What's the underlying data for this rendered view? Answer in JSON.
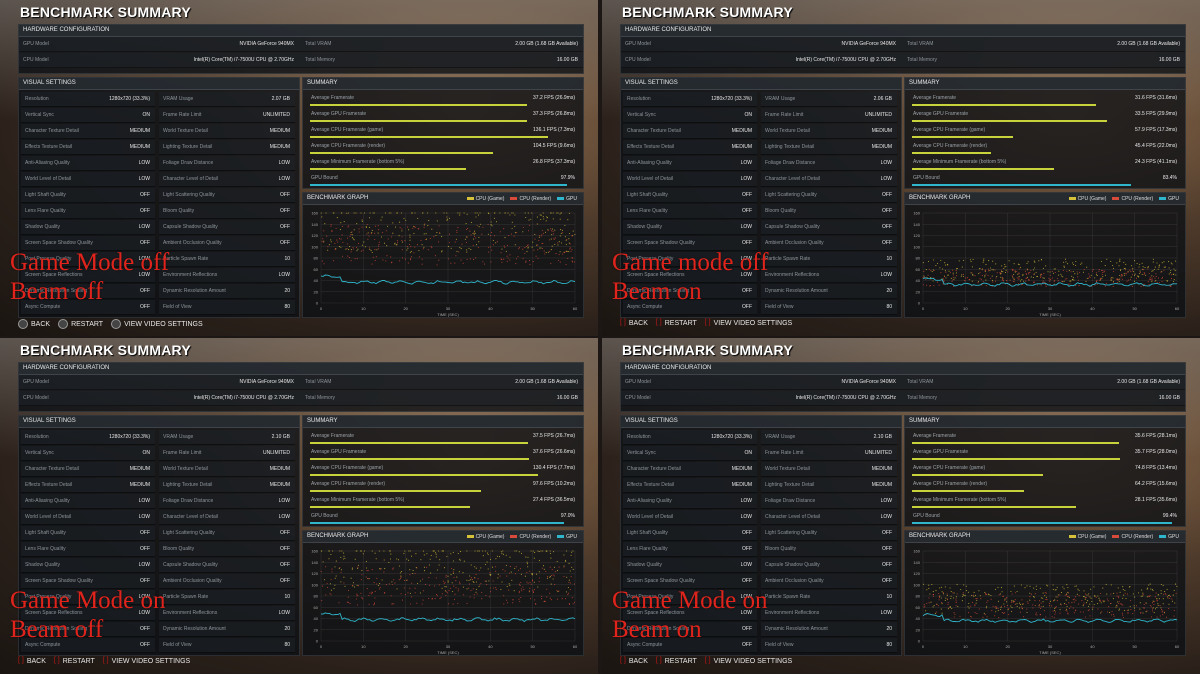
{
  "labels": {
    "title": "BENCHMARK SUMMARY",
    "hardware": "HARDWARE CONFIGURATION",
    "gpu_model": "GPU Model",
    "cpu_model": "CPU Model",
    "total_vram": "Total VRAM",
    "total_memory": "Total Memory",
    "visual": "VISUAL SETTINGS",
    "summary": "SUMMARY",
    "graph": "BENCHMARK GRAPH",
    "time_axis": "TIME (SEC)",
    "legend_game": "CPU (Game)",
    "legend_render": "CPU (Render)",
    "legend_gpu": "GPU",
    "back": "BACK",
    "restart": "RESTART",
    "video": "VIEW VIDEO SETTINGS"
  },
  "hardware": {
    "gpu": "NVIDIA GeForce 940MX",
    "cpu": "Intel(R) Core(TM) i7-7500U CPU @ 2.70GHz",
    "vram": "2.00 GB (1.68 GB Available)",
    "memory": "16.00 GB"
  },
  "settings_left": [
    [
      "Resolution",
      "1280x720 (33.3%)"
    ],
    [
      "Vertical Sync",
      "ON"
    ],
    [
      "Character Texture Detail",
      "MEDIUM"
    ],
    [
      "Effects Texture Detail",
      "MEDIUM"
    ],
    [
      "Anti-Aliasing Quality",
      "LOW"
    ],
    [
      "World Level of Detail",
      "LOW"
    ],
    [
      "Light Shaft Quality",
      "OFF"
    ],
    [
      "Lens Flare Quality",
      "OFF"
    ],
    [
      "Shadow Quality",
      "LOW"
    ],
    [
      "Screen Space Shadow Quality",
      "OFF"
    ],
    [
      "Post Process Quality",
      "LOW"
    ],
    [
      "Screen Space Reflections",
      "LOW"
    ],
    [
      "Dynamic Resolution Scaling",
      "OFF"
    ],
    [
      "Async Compute",
      "OFF"
    ]
  ],
  "settings_right": [
    [
      "VRAM Usage",
      ""
    ],
    [
      "Frame Rate Limit",
      "UNLIMITED"
    ],
    [
      "World Texture Detail",
      "MEDIUM"
    ],
    [
      "Lighting Texture Detail",
      "MEDIUM"
    ],
    [
      "Foliage Draw Distance",
      "LOW"
    ],
    [
      "Character Level of Detail",
      "LOW"
    ],
    [
      "Light Scattering Quality",
      "OFF"
    ],
    [
      "Bloom Quality",
      "OFF"
    ],
    [
      "Capsule Shadow Quality",
      "OFF"
    ],
    [
      "Ambient Occlusion Quality",
      "OFF"
    ],
    [
      "Particle Spawn Rate",
      "10"
    ],
    [
      "Environment Reflections",
      "LOW"
    ],
    [
      "Dynamic Resolution Amount",
      "20"
    ],
    [
      "Field of View",
      "80"
    ]
  ],
  "summary_labels": [
    "Average Framerate",
    "Average GPU Framerate",
    "Average CPU Framerate (game)",
    "Average CPU Framerate (render)",
    "Average Minimum Framerate (bottom 5%)",
    "GPU Bound"
  ],
  "panels": [
    {
      "overlay1": "Game Mode off",
      "overlay2": "Beam off",
      "vram_usage": "2.07 GB",
      "summary": [
        "37.2 FPS (26.9ms)",
        "37.3 FPS (26.8ms)",
        "136.1 FPS (7.3ms)",
        "104.5 FPS (9.6ms)",
        "26.8 FPS (37.3ms)",
        "97.9%"
      ],
      "footer_style": "round"
    },
    {
      "overlay1": "Game mode off",
      "overlay2": "Beam on",
      "vram_usage": "2.06 GB",
      "summary": [
        "31.6 FPS (31.6ms)",
        "33.5 FPS (29.9ms)",
        "57.9 FPS (17.3ms)",
        "45.4 FPS (22.0ms)",
        "24.3 FPS (41.1ms)",
        "83.4%"
      ],
      "footer_style": "red"
    },
    {
      "overlay1": "Game Mode on",
      "overlay2": "Beam off",
      "vram_usage": "2.10 GB",
      "summary": [
        "37.5 FPS (26.7ms)",
        "37.6 FPS (26.6ms)",
        "130.4 FPS (7.7ms)",
        "97.6 FPS (10.2ms)",
        "27.4 FPS (36.5ms)",
        "97.0%"
      ],
      "footer_style": "red"
    },
    {
      "overlay1": "Game Mode on",
      "overlay2": "Beam on",
      "vram_usage": "2.10 GB",
      "summary": [
        "35.6 FPS (28.1ms)",
        "35.7 FPS (28.0ms)",
        "74.8 FPS (13.4ms)",
        "64.2 FPS (15.6ms)",
        "28.1 FPS (35.6ms)",
        "99.4%"
      ],
      "footer_style": "red"
    }
  ],
  "chart_data": [
    {
      "type": "scatter",
      "title": "BENCHMARK GRAPH",
      "xlabel": "TIME (SEC)",
      "xlim": [
        0,
        60
      ],
      "ylim": [
        0,
        160
      ],
      "x_ticks": [
        0,
        10,
        20,
        30,
        40,
        50,
        60
      ],
      "y_ticks": [
        0,
        20,
        40,
        60,
        80,
        100,
        120,
        140,
        160
      ],
      "series": [
        {
          "name": "CPU (Game)",
          "color": "#d6c23a",
          "approx_mean": 136
        },
        {
          "name": "CPU (Render)",
          "color": "#d84a3a",
          "approx_mean": 104
        },
        {
          "name": "GPU",
          "color": "#2fb6cc",
          "approx_mean": 37
        }
      ]
    },
    {
      "type": "scatter",
      "title": "BENCHMARK GRAPH",
      "xlabel": "TIME (SEC)",
      "xlim": [
        0,
        60
      ],
      "ylim": [
        0,
        160
      ],
      "x_ticks": [
        0,
        10,
        20,
        30,
        40,
        50,
        60
      ],
      "y_ticks": [
        0,
        20,
        40,
        60,
        80,
        100,
        120,
        140,
        160
      ],
      "series": [
        {
          "name": "CPU (Game)",
          "color": "#d6c23a",
          "approx_mean": 58
        },
        {
          "name": "CPU (Render)",
          "color": "#d84a3a",
          "approx_mean": 45
        },
        {
          "name": "GPU",
          "color": "#2fb6cc",
          "approx_mean": 33
        }
      ]
    },
    {
      "type": "scatter",
      "title": "BENCHMARK GRAPH",
      "xlabel": "TIME (SEC)",
      "xlim": [
        0,
        60
      ],
      "ylim": [
        0,
        160
      ],
      "x_ticks": [
        0,
        10,
        20,
        30,
        40,
        50,
        60
      ],
      "y_ticks": [
        0,
        20,
        40,
        60,
        80,
        100,
        120,
        140,
        160
      ],
      "series": [
        {
          "name": "CPU (Game)",
          "color": "#d6c23a",
          "approx_mean": 130
        },
        {
          "name": "CPU (Render)",
          "color": "#d84a3a",
          "approx_mean": 98
        },
        {
          "name": "GPU",
          "color": "#2fb6cc",
          "approx_mean": 38
        }
      ]
    },
    {
      "type": "scatter",
      "title": "BENCHMARK GRAPH",
      "xlabel": "TIME (SEC)",
      "xlim": [
        0,
        60
      ],
      "ylim": [
        0,
        160
      ],
      "x_ticks": [
        0,
        10,
        20,
        30,
        40,
        50,
        60
      ],
      "y_ticks": [
        0,
        20,
        40,
        60,
        80,
        100,
        120,
        140,
        160
      ],
      "series": [
        {
          "name": "CPU (Game)",
          "color": "#d6c23a",
          "approx_mean": 75
        },
        {
          "name": "CPU (Render)",
          "color": "#d84a3a",
          "approx_mean": 64
        },
        {
          "name": "GPU",
          "color": "#2fb6cc",
          "approx_mean": 36
        }
      ]
    }
  ]
}
